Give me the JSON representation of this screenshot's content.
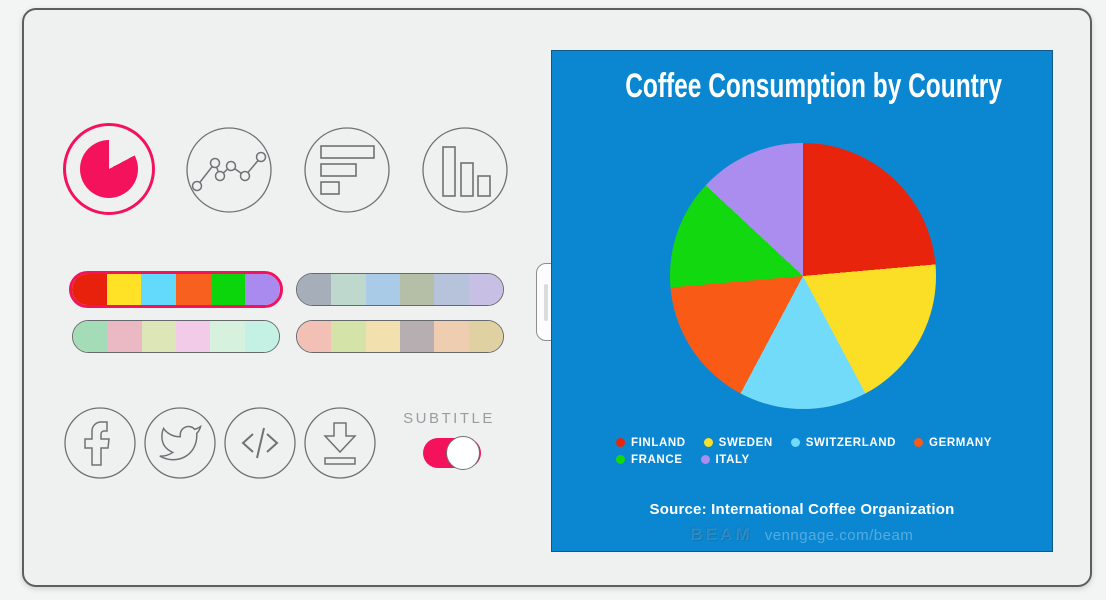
{
  "accent": "#f4125d",
  "chart_types": [
    {
      "id": "pie",
      "selected": true
    },
    {
      "id": "line",
      "selected": false
    },
    {
      "id": "bar-horizontal",
      "selected": false
    },
    {
      "id": "bar-vertical",
      "selected": false
    }
  ],
  "palettes": [
    {
      "id": "vivid",
      "selected": true,
      "colors": [
        "#e8210c",
        "#ffe226",
        "#63d9fb",
        "#f7601f",
        "#0bd60b",
        "#a98bf0"
      ]
    },
    {
      "id": "muted-cool",
      "selected": false,
      "colors": [
        "#a6aeba",
        "#bfd8ce",
        "#a9cbe8",
        "#b5bfa8",
        "#b7c2db",
        "#c8bfe4"
      ]
    },
    {
      "id": "pastel-mint",
      "selected": false,
      "colors": [
        "#a5dcb8",
        "#ebb9c3",
        "#dde6b7",
        "#f1cbe7",
        "#d6f1de",
        "#c5f1e4"
      ]
    },
    {
      "id": "pastel-warm",
      "selected": false,
      "colors": [
        "#f2c0b4",
        "#d4e3a8",
        "#f2e0ae",
        "#b7aeb2",
        "#efcdb0",
        "#dfd1a2"
      ]
    }
  ],
  "share_icons": [
    "facebook-icon",
    "twitter-icon",
    "embed-code-icon",
    "download-icon"
  ],
  "subtitle_toggle": {
    "label": "SUBTITLE",
    "on": true
  },
  "chart_panel": {
    "background": "#0b87d1",
    "title": "Coffee Consumption by Country",
    "source": "Source: International Coffee Organization",
    "watermark_logo": "BEAM",
    "watermark_url": "venngage.com/beam"
  },
  "chart_data": {
    "type": "pie",
    "title": "Coffee Consumption by Country",
    "categories": [
      "FINLAND",
      "SWEDEN",
      "SWITZERLAND",
      "GERMANY",
      "FRANCE",
      "ITALY"
    ],
    "values": [
      23.6,
      18.6,
      15.6,
      15.8,
      13.3,
      13.1
    ],
    "angles_deg": [
      [
        0,
        85
      ],
      [
        85,
        152
      ],
      [
        152,
        208
      ],
      [
        208,
        265
      ],
      [
        265,
        313
      ],
      [
        313,
        360
      ]
    ],
    "colors": [
      "#e8250c",
      "#fbdf26",
      "#72dbfa",
      "#f95b16",
      "#12d90f",
      "#ab8df0"
    ],
    "legend_position": "bottom",
    "source": "Source: International Coffee Organization"
  }
}
